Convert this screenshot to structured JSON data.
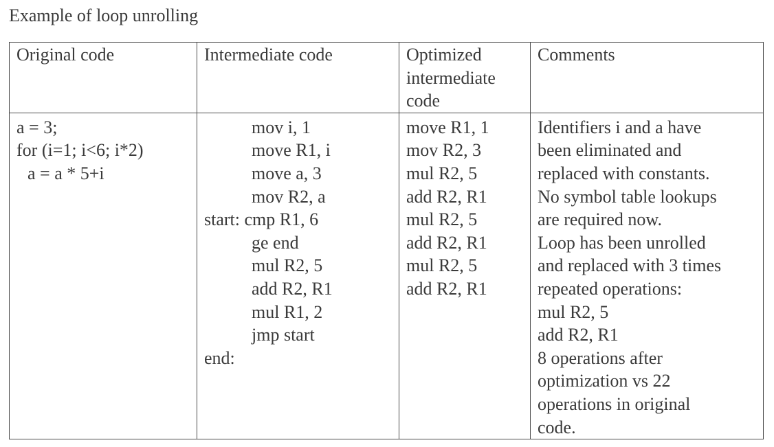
{
  "title": "Example of loop unrolling",
  "headers": {
    "original": "Original code",
    "intermediate": "Intermediate code",
    "optimized_lines": [
      "Optimized",
      "intermediate",
      "code"
    ],
    "comments": "Comments"
  },
  "original_code": [
    "a = 3;",
    "for (i=1; i<6; i*2)",
    "a = a * 5+i"
  ],
  "intermediate_code": [
    {
      "label": "",
      "code": "mov i, 1"
    },
    {
      "label": "",
      "code": "move R1, i"
    },
    {
      "label": "",
      "code": "move a, 3"
    },
    {
      "label": "",
      "code": "mov R2, a"
    },
    {
      "label": "start:",
      "code": "cmp R1, 6"
    },
    {
      "label": "",
      "code": "ge end"
    },
    {
      "label": "",
      "code": "mul R2, 5"
    },
    {
      "label": "",
      "code": "add R2, R1"
    },
    {
      "label": "",
      "code": "mul R1, 2"
    },
    {
      "label": "",
      "code": "jmp start"
    },
    {
      "label": "end:",
      "code": ""
    }
  ],
  "optimized_code": [
    "move R1, 1",
    "mov R2, 3",
    "mul R2, 5",
    "add R2, R1",
    "mul R2, 5",
    "add R2, R1",
    "mul R2, 5",
    "add R2, R1"
  ],
  "comments": [
    "Identifiers i and a have",
    "been eliminated and",
    "replaced with constants.",
    "No symbol table lookups",
    "are required now.",
    "Loop has been unrolled",
    "and replaced with 3 times",
    "repeated operations:",
    "mul R2, 5",
    "add R2, R1",
    "8 operations after",
    "optimization vs 22",
    "operations in original",
    "code."
  ]
}
